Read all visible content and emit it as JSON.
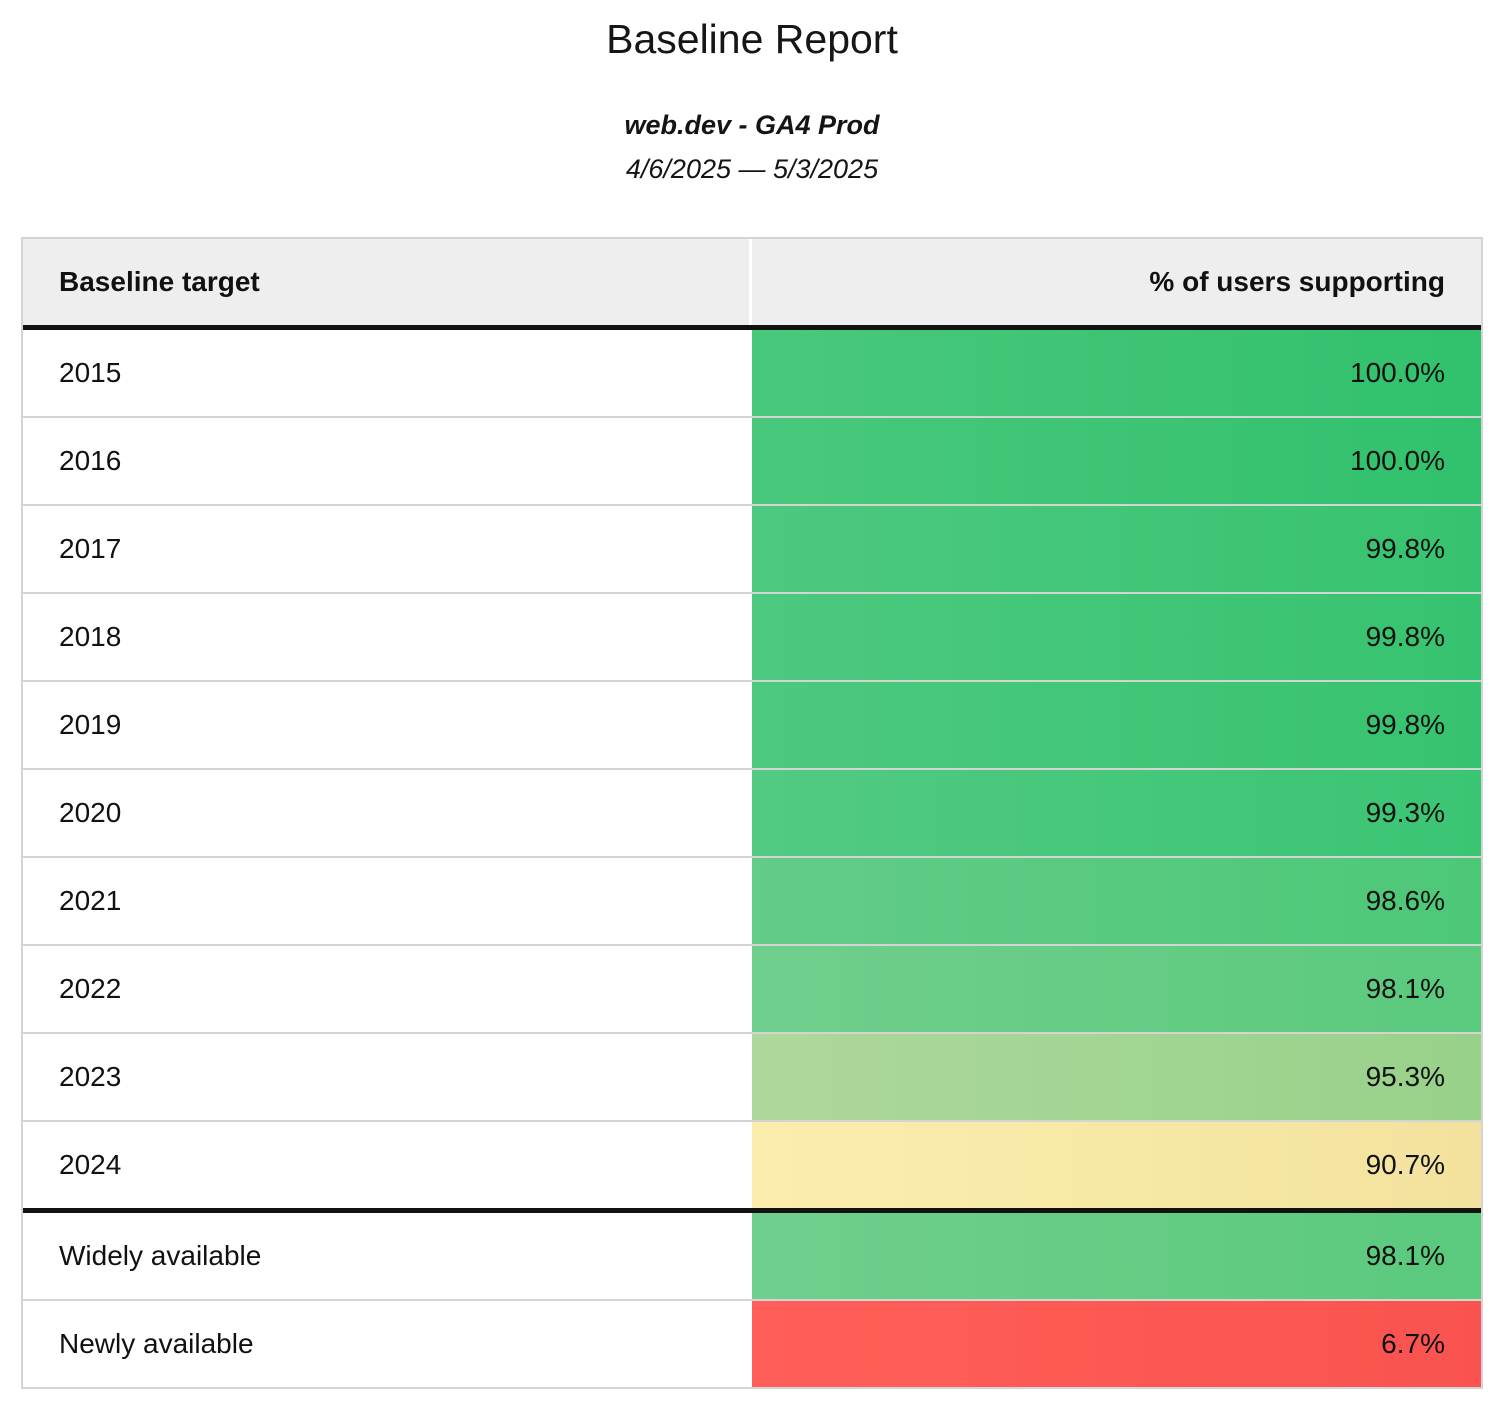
{
  "page": {
    "title": "Baseline Report",
    "subtitle": "web.dev - GA4 Prod",
    "date_range": "4/6/2025 — 5/3/2025"
  },
  "table": {
    "headers": {
      "target": "Baseline target",
      "support": "% of users supporting"
    },
    "rows": [
      {
        "label": "2015",
        "value": "100.0%",
        "color_left": "#49c87c",
        "color_right": "#31c16c"
      },
      {
        "label": "2016",
        "value": "100.0%",
        "color_left": "#49c87c",
        "color_right": "#31c16c"
      },
      {
        "label": "2017",
        "value": "99.8%",
        "color_left": "#4dc97f",
        "color_right": "#36c36f"
      },
      {
        "label": "2018",
        "value": "99.8%",
        "color_left": "#4dc97f",
        "color_right": "#36c36f"
      },
      {
        "label": "2019",
        "value": "99.8%",
        "color_left": "#4dc97f",
        "color_right": "#36c36f"
      },
      {
        "label": "2020",
        "value": "99.3%",
        "color_left": "#52ca82",
        "color_right": "#3ac573"
      },
      {
        "label": "2021",
        "value": "98.6%",
        "color_left": "#63cc87",
        "color_right": "#4dc878"
      },
      {
        "label": "2022",
        "value": "98.1%",
        "color_left": "#70ce8c",
        "color_right": "#5aca7d"
      },
      {
        "label": "2023",
        "value": "95.3%",
        "color_left": "#add89b",
        "color_right": "#98d18a"
      },
      {
        "label": "2024",
        "value": "90.7%",
        "color_left": "#fbeead",
        "color_right": "#f3e29e"
      },
      {
        "label": "Widely available",
        "value": "98.1%",
        "color_left": "#70ce8c",
        "color_right": "#5aca7d"
      },
      {
        "label": "Newly available",
        "value": "6.7%",
        "color_left": "#ff5f58",
        "color_right": "#fa534f"
      }
    ]
  },
  "chart_data": {
    "type": "table",
    "title": "Baseline Report",
    "subtitle": "web.dev - GA4 Prod",
    "date_range": "4/6/2025 — 5/3/2025",
    "columns": [
      "Baseline target",
      "% of users supporting"
    ],
    "categories": [
      "2015",
      "2016",
      "2017",
      "2018",
      "2019",
      "2020",
      "2021",
      "2022",
      "2023",
      "2024",
      "Widely available",
      "Newly available"
    ],
    "values": [
      100.0,
      100.0,
      99.8,
      99.8,
      99.8,
      99.3,
      98.6,
      98.1,
      95.3,
      90.7,
      98.1,
      6.7
    ],
    "value_unit": "%",
    "layout_hints": {
      "value_color_scale": "green (high) to yellow (mid) to red (low)",
      "thick_black_rule_below": [
        "header",
        "2024"
      ],
      "header_background": "#eeeeee",
      "values_right_aligned": true
    }
  }
}
